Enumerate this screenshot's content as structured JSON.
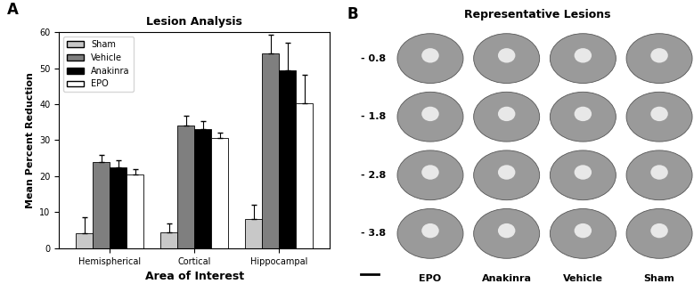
{
  "chart_data": {
    "type": "bar",
    "title": "Lesion Analysis",
    "annotations": [
      "A"
    ],
    "x_label": "Area of Interest",
    "y_label": "Mean Percent Reduction",
    "categories": [
      "Hemispherical",
      "Cortical",
      "Hippocampal"
    ],
    "series": [
      {
        "name": "Sham",
        "color": "#c8c8c8",
        "values": [
          4.2,
          4.3,
          8.0
        ],
        "errors": [
          4.5,
          2.5,
          4.0
        ]
      },
      {
        "name": "Vehicle",
        "color": "#7f7f7f",
        "values": [
          24.0,
          34.0,
          54.0
        ],
        "errors": [
          2.0,
          2.8,
          5.3
        ]
      },
      {
        "name": "Anakinra",
        "color": "#000000",
        "values": [
          22.5,
          33.0,
          49.5
        ],
        "errors": [
          1.8,
          2.3,
          7.5
        ]
      },
      {
        "name": "EPO",
        "color": "#ffffff",
        "values": [
          20.5,
          30.7,
          40.2
        ],
        "errors": [
          1.5,
          1.5,
          8.0
        ]
      }
    ],
    "ylim": [
      0,
      60
    ],
    "yticks": [
      0,
      10,
      20,
      30,
      40,
      50,
      60
    ],
    "legend": "upper left",
    "grid": false
  },
  "representative_lesions": {
    "panel_label": "B",
    "title": "Representative Lesions",
    "rows": [
      "- 0.8",
      "- 1.8",
      "- 2.8",
      "- 3.8"
    ],
    "columns": [
      "EPO",
      "Anakinra",
      "Vehicle",
      "Sham"
    ]
  }
}
